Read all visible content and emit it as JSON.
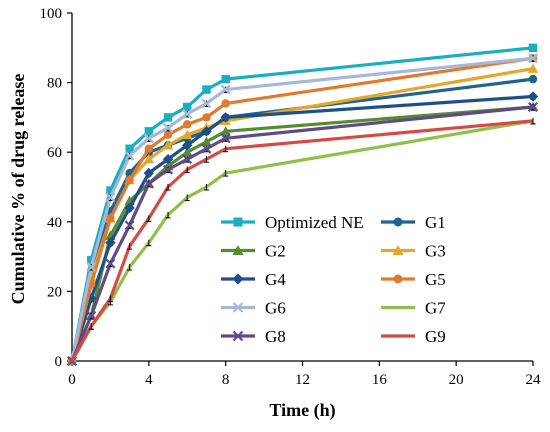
{
  "chart_data": {
    "type": "line",
    "title": "",
    "xlabel": "Time (h)",
    "ylabel": "Cumulative % of drug release",
    "xlim": [
      0,
      24
    ],
    "ylim": [
      0,
      100
    ],
    "xticks": [
      0,
      4,
      8,
      12,
      16,
      20,
      24
    ],
    "yticks": [
      0,
      20,
      40,
      60,
      80,
      100
    ],
    "grid": false,
    "legend_position": "center-right",
    "series": [
      {
        "name": "Optimized NE",
        "color": "#1aaec0",
        "marker": "square",
        "x": [
          0,
          1,
          2,
          3,
          4,
          5,
          6,
          7,
          8,
          24
        ],
        "y": [
          0,
          29,
          49,
          61,
          66,
          70,
          73,
          78,
          81,
          90
        ]
      },
      {
        "name": "G1",
        "color": "#1f6391",
        "marker": "circle",
        "x": [
          0,
          1,
          2,
          3,
          4,
          5,
          6,
          7,
          8,
          24
        ],
        "y": [
          0,
          26,
          43,
          54,
          60,
          62,
          64,
          66,
          70,
          81
        ]
      },
      {
        "name": "G2",
        "color": "#548c2f",
        "marker": "triangle",
        "x": [
          0,
          1,
          2,
          3,
          4,
          5,
          6,
          7,
          8,
          24
        ],
        "y": [
          0,
          13,
          36,
          46,
          51,
          56,
          60,
          63,
          66,
          73
        ]
      },
      {
        "name": "G3",
        "color": "#e3a82b",
        "marker": "triangle",
        "x": [
          0,
          1,
          2,
          3,
          4,
          5,
          6,
          7,
          8,
          24
        ],
        "y": [
          0,
          24,
          41,
          52,
          58,
          62,
          65,
          67,
          69,
          84
        ]
      },
      {
        "name": "G4",
        "color": "#1e4f8a",
        "marker": "diamond",
        "x": [
          0,
          1,
          2,
          3,
          4,
          5,
          6,
          7,
          8,
          24
        ],
        "y": [
          0,
          18,
          34,
          44,
          54,
          58,
          62,
          66,
          70,
          76
        ]
      },
      {
        "name": "G5",
        "color": "#e07a2e",
        "marker": "circle",
        "x": [
          0,
          1,
          2,
          3,
          4,
          5,
          6,
          7,
          8,
          24
        ],
        "y": [
          0,
          22,
          41,
          52,
          61,
          65,
          68,
          70,
          74,
          87
        ]
      },
      {
        "name": "G6",
        "color": "#a5b8d8",
        "marker": "x",
        "x": [
          0,
          1,
          2,
          3,
          4,
          5,
          6,
          7,
          8,
          24
        ],
        "y": [
          0,
          27,
          47,
          59,
          64,
          67,
          71,
          74,
          78,
          87
        ]
      },
      {
        "name": "G7",
        "color": "#8fc04a",
        "marker": "none",
        "x": [
          0,
          1,
          2,
          3,
          4,
          5,
          6,
          7,
          8,
          24
        ],
        "y": [
          0,
          10,
          17,
          27,
          34,
          42,
          47,
          50,
          54,
          69
        ]
      },
      {
        "name": "G8",
        "color": "#5f4a8c",
        "marker": "x",
        "x": [
          0,
          1,
          2,
          3,
          4,
          5,
          6,
          7,
          8,
          24
        ],
        "y": [
          0,
          13,
          28,
          39,
          51,
          55,
          58,
          61,
          64,
          73
        ]
      },
      {
        "name": "G9",
        "color": "#d44b45",
        "marker": "none",
        "x": [
          0,
          1,
          2,
          3,
          4,
          5,
          6,
          7,
          8,
          24
        ],
        "y": [
          0,
          10,
          18,
          33,
          41,
          50,
          55,
          58,
          61,
          69
        ]
      }
    ]
  }
}
